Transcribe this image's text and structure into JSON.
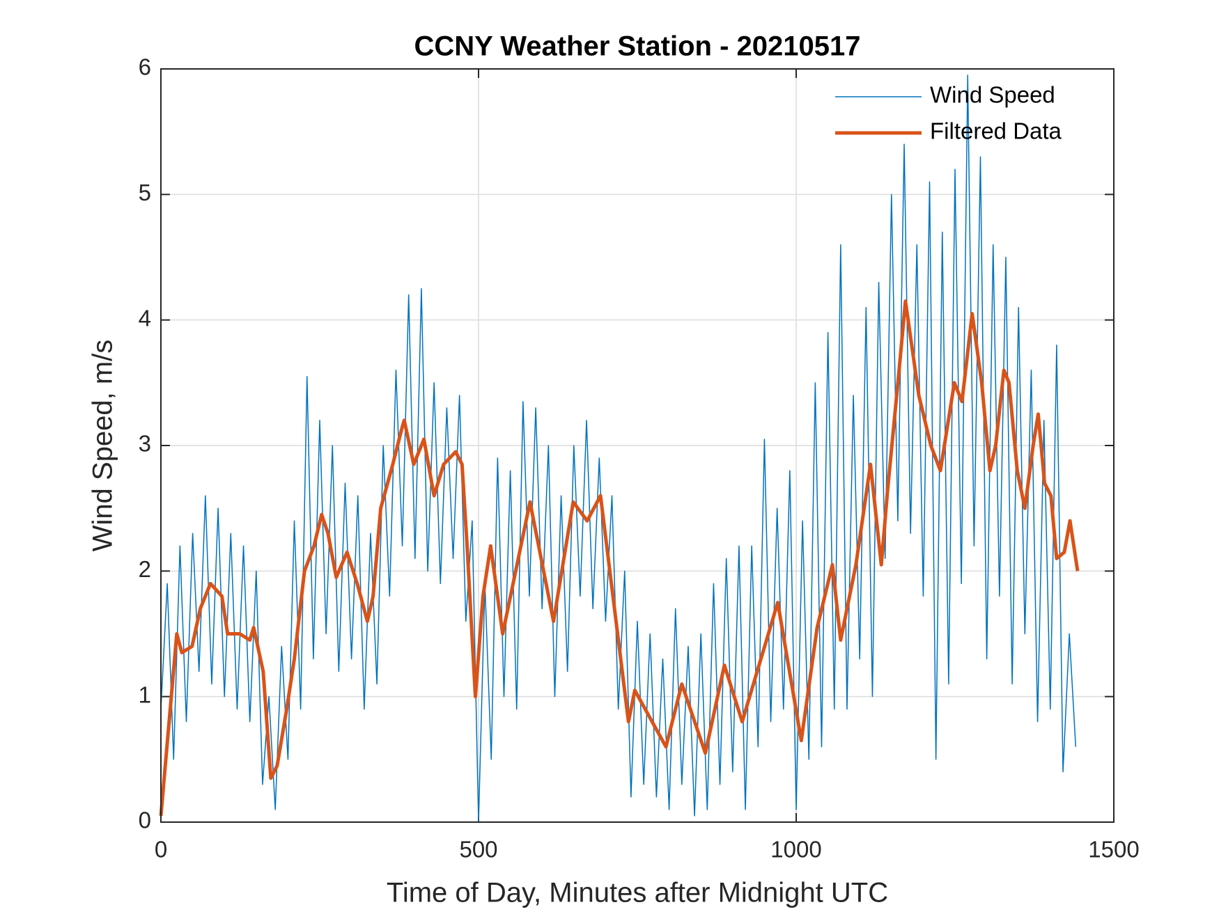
{
  "chart_data": {
    "type": "line",
    "title": "CCNY Weather Station - 20210517",
    "x_label": "Time of Day, Minutes after Midnight UTC",
    "y_label": "Wind Speed, m/s",
    "xlim": [
      0,
      1500
    ],
    "xticks": [
      0,
      500,
      1000,
      1500
    ],
    "ylim": [
      0,
      6
    ],
    "yticks": [
      0,
      1,
      2,
      3,
      4,
      5,
      6
    ],
    "grid": true,
    "legend": "northeast",
    "series": [
      {
        "name": "Wind Speed",
        "color": "#0072bd",
        "width": 1.5,
        "x": [
          0,
          10,
          20,
          30,
          40,
          50,
          60,
          70,
          80,
          90,
          100,
          110,
          120,
          130,
          140,
          150,
          160,
          170,
          180,
          190,
          200,
          210,
          220,
          230,
          240,
          250,
          260,
          270,
          280,
          290,
          300,
          310,
          320,
          330,
          340,
          350,
          360,
          370,
          380,
          390,
          400,
          410,
          420,
          430,
          440,
          450,
          460,
          470,
          480,
          490,
          500,
          510,
          520,
          530,
          540,
          550,
          560,
          570,
          580,
          590,
          600,
          610,
          620,
          630,
          640,
          650,
          660,
          670,
          680,
          690,
          700,
          710,
          720,
          730,
          740,
          750,
          760,
          770,
          780,
          790,
          800,
          810,
          820,
          830,
          840,
          850,
          860,
          870,
          880,
          890,
          900,
          910,
          920,
          930,
          940,
          950,
          960,
          970,
          980,
          990,
          1000,
          1010,
          1020,
          1030,
          1040,
          1050,
          1060,
          1070,
          1080,
          1090,
          1100,
          1110,
          1120,
          1130,
          1140,
          1150,
          1160,
          1170,
          1180,
          1190,
          1200,
          1210,
          1220,
          1230,
          1240,
          1250,
          1260,
          1270,
          1280,
          1290,
          1300,
          1310,
          1320,
          1330,
          1340,
          1350,
          1360,
          1370,
          1380,
          1390,
          1400,
          1410,
          1420,
          1430,
          1440
        ],
        "values": [
          0.9,
          1.9,
          0.5,
          2.2,
          0.8,
          2.3,
          1.2,
          2.6,
          1.1,
          2.5,
          1.0,
          2.3,
          0.9,
          2.2,
          0.8,
          2.0,
          0.3,
          1.0,
          0.1,
          1.4,
          0.5,
          2.4,
          0.9,
          3.55,
          1.3,
          3.2,
          1.5,
          3.0,
          1.2,
          2.7,
          1.3,
          2.6,
          0.9,
          2.3,
          1.1,
          3.0,
          1.8,
          3.6,
          2.2,
          4.2,
          2.1,
          4.25,
          2.0,
          3.5,
          1.9,
          3.3,
          2.1,
          3.4,
          1.6,
          2.4,
          0.0,
          1.9,
          0.5,
          2.9,
          1.0,
          2.8,
          0.9,
          3.35,
          1.8,
          3.3,
          1.7,
          3.0,
          1.0,
          2.6,
          1.2,
          3.0,
          1.8,
          3.2,
          1.7,
          2.9,
          1.6,
          2.6,
          0.9,
          2.0,
          0.2,
          1.6,
          0.3,
          1.5,
          0.2,
          1.3,
          0.1,
          1.7,
          0.3,
          1.4,
          0.05,
          1.5,
          0.1,
          1.9,
          0.3,
          2.1,
          0.4,
          2.2,
          0.1,
          2.2,
          0.6,
          3.05,
          0.8,
          2.5,
          0.9,
          2.8,
          0.1,
          2.4,
          0.5,
          3.5,
          0.6,
          3.9,
          0.9,
          4.6,
          0.9,
          3.4,
          1.3,
          4.1,
          1.0,
          4.3,
          2.1,
          5.0,
          2.4,
          5.4,
          2.3,
          4.6,
          1.8,
          5.1,
          0.5,
          4.7,
          1.1,
          5.2,
          1.9,
          5.95,
          2.2,
          5.3,
          1.3,
          4.6,
          1.8,
          4.5,
          1.1,
          4.1,
          1.5,
          3.6,
          0.8,
          3.2,
          0.9,
          3.8,
          0.4,
          1.5,
          0.6
        ]
      },
      {
        "name": "Filtered Data",
        "color": "#d95319",
        "width": 5,
        "x": [
          0,
          25,
          33,
          49,
          62,
          78,
          96,
          105,
          124,
          140,
          146,
          161,
          173,
          183,
          198,
          210,
          226,
          241,
          253,
          263,
          276,
          293,
          309,
          325,
          334,
          346,
          365,
          380,
          383,
          398,
          414,
          430,
          445,
          464,
          474,
          482,
          495,
          507,
          519,
          538,
          581,
          618,
          649,
          671,
          692,
          736,
          746,
          795,
          820,
          857,
          887,
          915,
          971,
          1008,
          1033,
          1057,
          1070,
          1094,
          1117,
          1134,
          1144,
          1162,
          1172,
          1193,
          1212,
          1227,
          1249,
          1261,
          1277,
          1292,
          1305,
          1314,
          1327,
          1335,
          1348,
          1360,
          1373,
          1381,
          1391,
          1401,
          1410,
          1422,
          1431,
          1443
        ],
        "values": [
          0.05,
          1.5,
          1.35,
          1.4,
          1.7,
          1.9,
          1.8,
          1.5,
          1.5,
          1.45,
          1.55,
          1.2,
          0.35,
          0.45,
          0.9,
          1.3,
          2.0,
          2.2,
          2.45,
          2.3,
          1.95,
          2.15,
          1.9,
          1.6,
          1.8,
          2.5,
          2.85,
          3.15,
          3.2,
          2.85,
          3.05,
          2.6,
          2.85,
          2.95,
          2.85,
          2.2,
          1.0,
          1.8,
          2.2,
          1.5,
          2.55,
          1.6,
          2.55,
          2.4,
          2.6,
          0.8,
          1.05,
          0.6,
          1.1,
          0.55,
          1.25,
          0.8,
          1.75,
          0.65,
          1.55,
          2.05,
          1.45,
          2.05,
          2.85,
          2.05,
          2.65,
          3.6,
          4.15,
          3.4,
          3.0,
          2.8,
          3.5,
          3.35,
          4.05,
          3.5,
          2.8,
          3.0,
          3.6,
          3.5,
          2.8,
          2.5,
          3.0,
          3.25,
          2.7,
          2.6,
          2.1,
          2.15,
          2.4,
          2.0
        ]
      }
    ]
  }
}
